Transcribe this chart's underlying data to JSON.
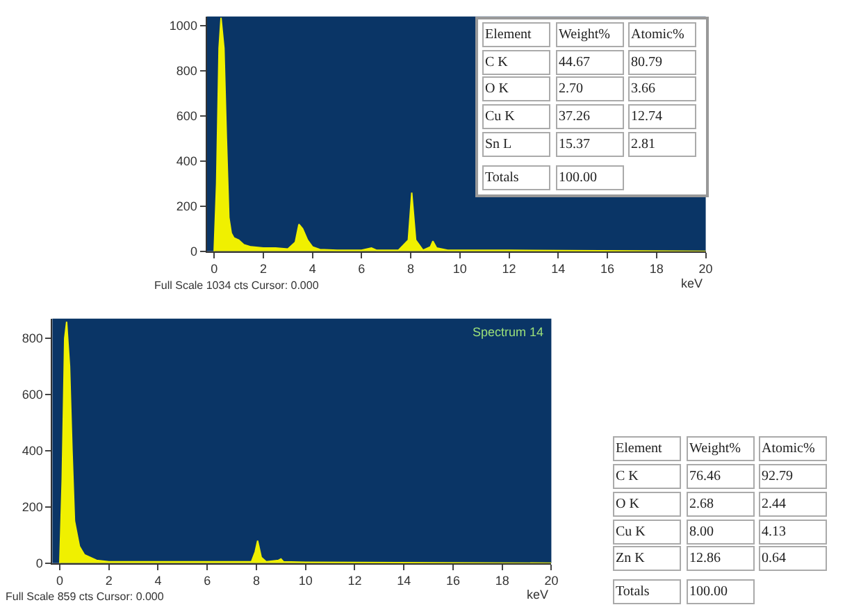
{
  "chart_data": [
    {
      "type": "area",
      "xlabel": "keV",
      "xlim": [
        -0.3,
        20
      ],
      "xticks": [
        0,
        2,
        4,
        6,
        8,
        10,
        12,
        14,
        16,
        18,
        20
      ],
      "ylim": [
        0,
        1040
      ],
      "yticks": [
        0,
        200,
        400,
        600,
        800,
        1000
      ],
      "x": [
        0,
        0.1,
        0.2,
        0.28,
        0.4,
        0.5,
        0.6,
        0.7,
        0.8,
        1.0,
        1.2,
        1.5,
        2.0,
        2.5,
        3.0,
        3.3,
        3.45,
        3.6,
        3.8,
        4.0,
        4.3,
        5,
        6,
        6.4,
        6.6,
        7.5,
        7.9,
        8.04,
        8.2,
        8.5,
        8.8,
        8.9,
        9.05,
        9.5,
        12,
        20
      ],
      "series": [
        {
          "color": "#f0f000",
          "values": [
            0,
            300,
            900,
            1034,
            900,
            500,
            150,
            80,
            60,
            50,
            30,
            20,
            15,
            15,
            10,
            40,
            120,
            100,
            50,
            20,
            8,
            5,
            5,
            15,
            5,
            5,
            50,
            260,
            50,
            5,
            20,
            45,
            15,
            5,
            5,
            0
          ]
        }
      ],
      "annotations": [
        "Full Scale 1034 cts Cursor: 0.000",
        "Element",
        "Weight%",
        "Atomic%",
        "C K",
        "44.67",
        "80.79",
        "O K",
        "2.70",
        "3.66",
        "Cu K",
        "37.26",
        "12.74",
        "Sn L",
        "15.37",
        "2.81",
        "Totals",
        "100.00"
      ]
    },
    {
      "type": "area",
      "title": "Spectrum 14",
      "xlabel": "keV",
      "xlim": [
        -0.3,
        20
      ],
      "xticks": [
        0,
        2,
        4,
        6,
        8,
        10,
        12,
        14,
        16,
        18,
        20
      ],
      "ylim": [
        0,
        870
      ],
      "yticks": [
        0,
        200,
        400,
        600,
        800
      ],
      "x": [
        0,
        0.1,
        0.2,
        0.28,
        0.4,
        0.5,
        0.6,
        0.8,
        1.0,
        1.5,
        2,
        7.8,
        7.95,
        8.05,
        8.2,
        8.4,
        8.9,
        9.0,
        9.1,
        10,
        20
      ],
      "series": [
        {
          "color": "#f0f000",
          "values": [
            0,
            300,
            800,
            859,
            700,
            400,
            150,
            60,
            30,
            10,
            5,
            5,
            40,
            80,
            20,
            5,
            10,
            15,
            5,
            3,
            0
          ]
        }
      ],
      "annotations": [
        "Full Scale 859 cts Cursor: 0.000",
        "Element",
        "Weight%",
        "Atomic%",
        "C K",
        "76.46",
        "92.79",
        "O K",
        "2.68",
        "2.44",
        "Cu K",
        "8.00",
        "4.13",
        "Zn K",
        "12.86",
        "0.64",
        "Totals",
        "100.00"
      ]
    }
  ]
}
